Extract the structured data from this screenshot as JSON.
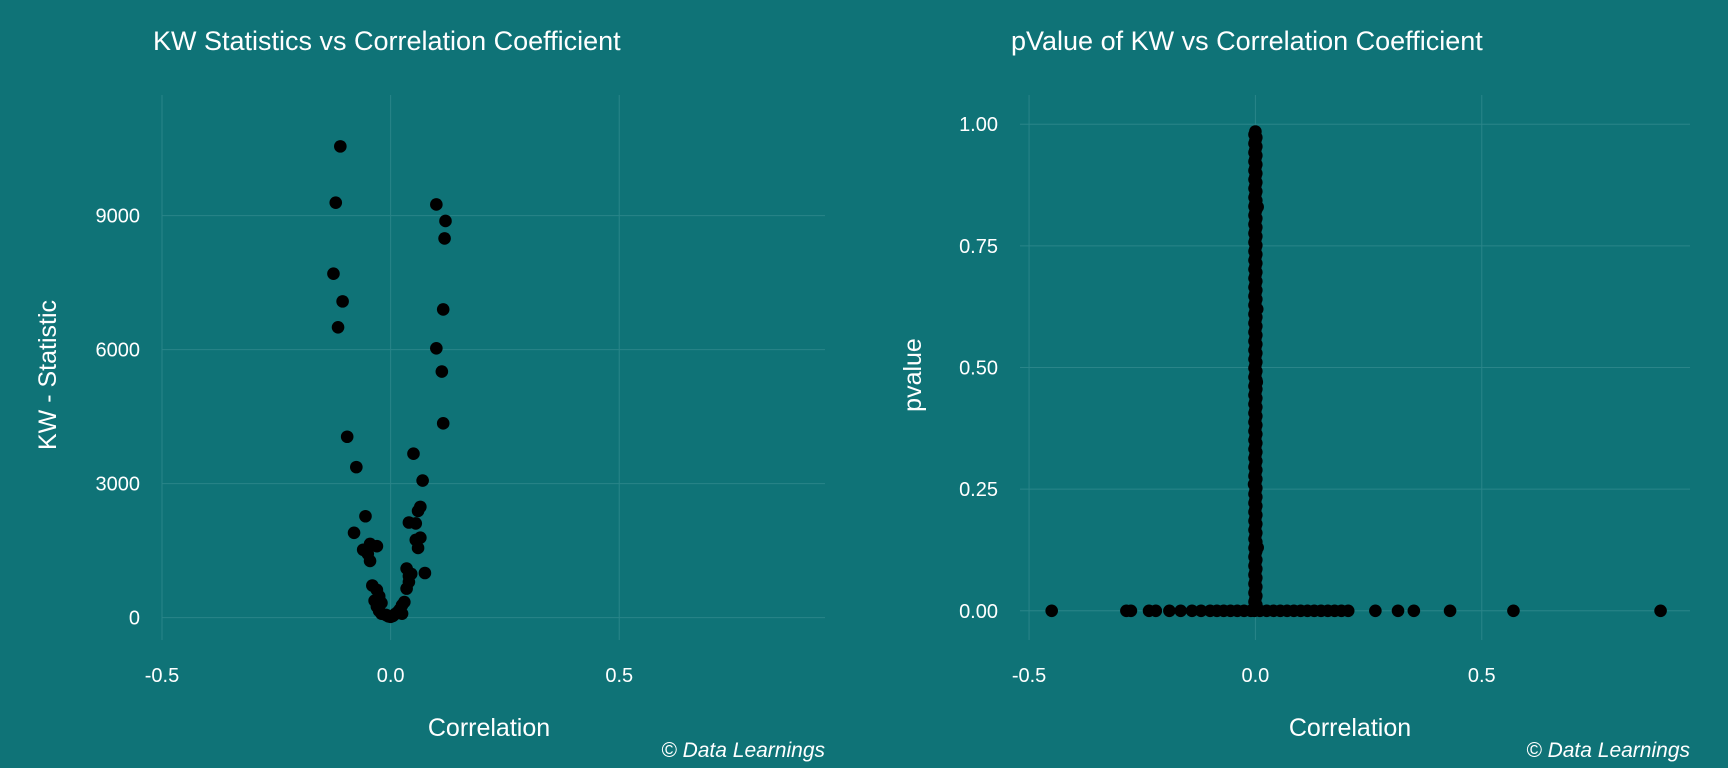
{
  "chart_data": [
    {
      "type": "scatter",
      "title": "KW Statistics vs Correlation Coefficient",
      "xlabel": "Correlation",
      "ylabel": "KW - Statistic",
      "caption": "© Data Learnings",
      "xlim": [
        -0.5,
        0.95
      ],
      "ylim": [
        -500,
        11700
      ],
      "xticks": [
        -0.5,
        0.0,
        0.5
      ],
      "xtick_labels": [
        "-0.5",
        "0.0",
        "0.5"
      ],
      "yticks": [
        0,
        3000,
        6000,
        9000
      ],
      "ytick_labels": [
        "0",
        "3000",
        "6000",
        "9000"
      ],
      "grid": true,
      "points": [
        [
          -0.11,
          10550
        ],
        [
          -0.12,
          9290
        ],
        [
          -0.125,
          7700
        ],
        [
          -0.105,
          7080
        ],
        [
          -0.115,
          6500
        ],
        [
          -0.095,
          4050
        ],
        [
          -0.075,
          3370
        ],
        [
          -0.08,
          1900
        ],
        [
          -0.055,
          2270
        ],
        [
          -0.045,
          1650
        ],
        [
          -0.06,
          1520
        ],
        [
          -0.05,
          1430
        ],
        [
          -0.045,
          1270
        ],
        [
          -0.03,
          1600
        ],
        [
          -0.04,
          720
        ],
        [
          -0.03,
          620
        ],
        [
          -0.025,
          480
        ],
        [
          -0.035,
          380
        ],
        [
          -0.02,
          330
        ],
        [
          -0.03,
          250
        ],
        [
          -0.025,
          150
        ],
        [
          -0.02,
          90
        ],
        [
          -0.01,
          60
        ],
        [
          -0.005,
          30
        ],
        [
          0.0,
          20
        ],
        [
          0.005,
          40
        ],
        [
          0.01,
          80
        ],
        [
          0.015,
          120
        ],
        [
          0.02,
          180
        ],
        [
          0.025,
          90
        ],
        [
          0.03,
          350
        ],
        [
          0.025,
          280
        ],
        [
          0.035,
          650
        ],
        [
          0.04,
          800
        ],
        [
          0.04,
          930
        ],
        [
          0.035,
          1100
        ],
        [
          0.045,
          980
        ],
        [
          0.04,
          2130
        ],
        [
          0.05,
          3670
        ],
        [
          0.055,
          2110
        ],
        [
          0.055,
          1740
        ],
        [
          0.06,
          1560
        ],
        [
          0.065,
          1790
        ],
        [
          0.06,
          2390
        ],
        [
          0.065,
          2480
        ],
        [
          0.07,
          3070
        ],
        [
          0.075,
          1000
        ],
        [
          0.1,
          9250
        ],
        [
          0.12,
          8880
        ],
        [
          0.118,
          8490
        ],
        [
          0.115,
          6900
        ],
        [
          0.1,
          6030
        ],
        [
          0.112,
          5510
        ],
        [
          0.115,
          4350
        ]
      ]
    },
    {
      "type": "scatter",
      "title": "pValue of KW vs Correlation Coefficient",
      "xlabel": "Correlation",
      "ylabel": "pvalue",
      "caption": "© Data Learnings",
      "xlim": [
        -0.52,
        0.96
      ],
      "ylim": [
        -0.06,
        1.06
      ],
      "xticks": [
        -0.5,
        0.0,
        0.5
      ],
      "xtick_labels": [
        "-0.5",
        "0.0",
        "0.5"
      ],
      "yticks": [
        0.0,
        0.25,
        0.5,
        0.75,
        1.0
      ],
      "ytick_labels": [
        "0.00",
        "0.25",
        "0.50",
        "0.75",
        "1.00"
      ],
      "grid": true,
      "vertical_cluster": {
        "x": 0.0,
        "y_from": 0.0,
        "y_to": 0.985
      },
      "points": [
        [
          0.005,
          0.83
        ],
        [
          0.005,
          0.13
        ],
        [
          0.003,
          0.47
        ],
        [
          -0.003,
          0.26
        ],
        [
          0.004,
          0.62
        ],
        [
          -0.45,
          0.0
        ],
        [
          -0.285,
          0.0
        ],
        [
          -0.275,
          0.0
        ],
        [
          -0.235,
          0.0
        ],
        [
          -0.22,
          0.0
        ],
        [
          -0.19,
          0.0
        ],
        [
          -0.165,
          0.0
        ],
        [
          -0.14,
          0.0
        ],
        [
          -0.12,
          0.0
        ],
        [
          -0.1,
          0.0
        ],
        [
          -0.085,
          0.0
        ],
        [
          -0.07,
          0.0
        ],
        [
          -0.055,
          0.0
        ],
        [
          -0.04,
          0.0
        ],
        [
          -0.025,
          0.0
        ],
        [
          -0.01,
          0.0
        ],
        [
          0.01,
          0.0
        ],
        [
          0.025,
          0.0
        ],
        [
          0.04,
          0.0
        ],
        [
          0.055,
          0.0
        ],
        [
          0.07,
          0.0
        ],
        [
          0.085,
          0.0
        ],
        [
          0.1,
          0.0
        ],
        [
          0.115,
          0.0
        ],
        [
          0.13,
          0.0
        ],
        [
          0.145,
          0.0
        ],
        [
          0.16,
          0.0
        ],
        [
          0.175,
          0.0
        ],
        [
          0.19,
          0.0
        ],
        [
          0.205,
          0.0
        ],
        [
          0.265,
          0.0
        ],
        [
          0.315,
          0.0
        ],
        [
          0.35,
          0.0
        ],
        [
          0.43,
          0.0
        ],
        [
          0.57,
          0.0
        ],
        [
          0.895,
          0.0
        ]
      ]
    }
  ]
}
